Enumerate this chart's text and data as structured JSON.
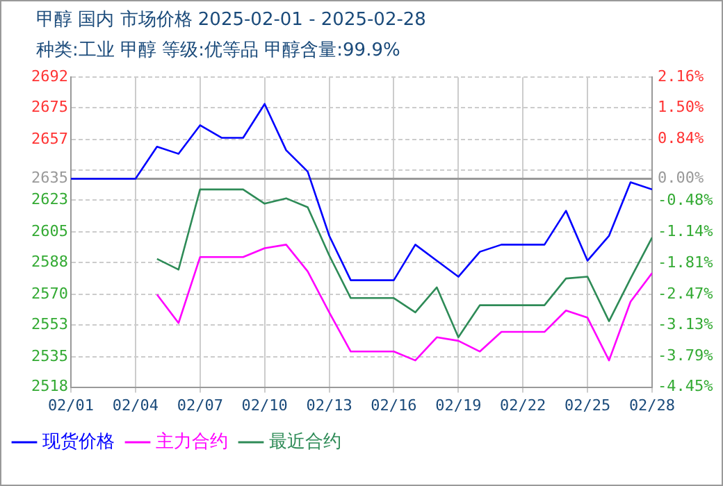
{
  "chart_data": {
    "type": "line",
    "title": "甲醇 国内 市场价格 2025-02-01 - 2025-02-28",
    "subtitle": "种类:工业 甲醇 等级:优等品 甲醇含量:99.9%",
    "x": [
      "--02-01",
      "--02-02",
      "--02-03",
      "--02-04",
      "--02-05",
      "--02-06",
      "--02-07",
      "--02-08",
      "--02-09",
      "--02-10",
      "--02-11",
      "--02-12",
      "--02-13",
      "--02-14",
      "--02-15",
      "--02-16",
      "--02-17",
      "--02-18",
      "--02-19",
      "--02-20",
      "--02-21",
      "--02-22",
      "--02-23",
      "--02-24",
      "--02-25",
      "--02-26",
      "--02-27",
      "--02-28"
    ],
    "series": [
      {
        "name": "现货价格",
        "color": "#0000ff",
        "values": [
          2635,
          2635,
          2635,
          2635,
          2653,
          2649,
          2665,
          2658,
          2658,
          2677,
          2651,
          2639,
          2603,
          2578,
          2578,
          2578,
          2598,
          2589,
          2580,
          2594,
          2598,
          2598,
          2598,
          2617,
          2589,
          2603,
          2633,
          2629
        ]
      },
      {
        "name": "主力合约",
        "color": "#ff00ff",
        "values": [
          null,
          null,
          null,
          null,
          2570,
          2554,
          2591,
          2591,
          2591,
          2596,
          2598,
          2583,
          2560,
          2538,
          2538,
          2538,
          2533,
          2546,
          2544,
          2538,
          2549,
          2549,
          2549,
          2561,
          2557,
          2533,
          2566,
          2582
        ]
      },
      {
        "name": "最近合约",
        "color": "#2e8b57",
        "values": [
          null,
          null,
          null,
          null,
          2590,
          2584,
          2629,
          2629,
          2629,
          2621,
          2624,
          2619,
          2592,
          2568,
          2568,
          2568,
          2560,
          2574,
          2546,
          2564,
          2564,
          2564,
          2564,
          2579,
          2580,
          2555,
          2579,
          2602
        ]
      }
    ],
    "xlim": [
      "--02-01",
      "--02-28"
    ],
    "xticks": [
      {
        "value": "--02-01",
        "label": "02/01"
      },
      {
        "value": "--02-04",
        "label": "02/04"
      },
      {
        "value": "--02-07",
        "label": "02/07"
      },
      {
        "value": "--02-10",
        "label": "02/10"
      },
      {
        "value": "--02-13",
        "label": "02/13"
      },
      {
        "value": "--02-16",
        "label": "02/16"
      },
      {
        "value": "--02-19",
        "label": "02/19"
      },
      {
        "value": "--02-22",
        "label": "02/22"
      },
      {
        "value": "--02-25",
        "label": "02/25"
      },
      {
        "value": "--02-28",
        "label": "02/28"
      }
    ],
    "ylim": [
      2518,
      2692
    ],
    "yticks": [
      2518,
      2535,
      2553,
      2570,
      2588,
      2605,
      2623,
      2635,
      {
        "value": 2640,
        "label": null
      },
      2657,
      2675,
      2692
    ],
    "y2lim": [
      -4.45,
      2.16
    ],
    "y2ticks": [
      {
        "value": -4.45,
        "label": "-4.45%"
      },
      {
        "value": -3.79,
        "label": "-3.79%"
      },
      {
        "value": -3.13,
        "label": "-3.13%"
      },
      {
        "value": -2.47,
        "label": "-2.47%"
      },
      {
        "value": -1.81,
        "label": "-1.81%"
      },
      {
        "value": -1.14,
        "label": "-1.14%"
      },
      {
        "value": -0.48,
        "label": "-0.48%"
      },
      {
        "value": 0,
        "label": "0.00%"
      },
      {
        "value": 0.84,
        "label": "0.84%"
      },
      {
        "value": 1.5,
        "label": "1.50%"
      },
      {
        "value": 2.16,
        "label": "2.16%"
      }
    ],
    "ref_lines": [
      {
        "axis": "y",
        "value": 2635,
        "color": "#999999"
      }
    ],
    "grid": true,
    "legend": "bottom",
    "marker": "none",
    "line_style": "solid"
  }
}
